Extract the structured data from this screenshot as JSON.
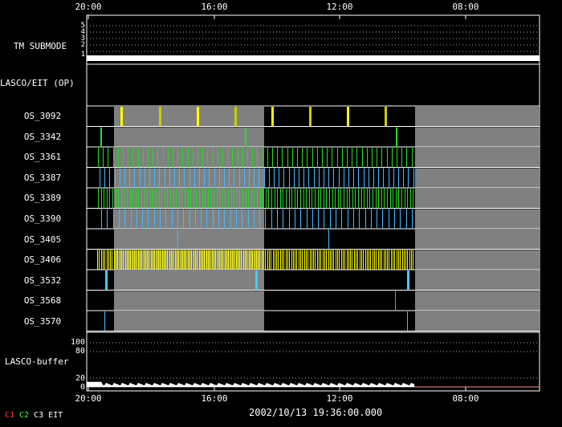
{
  "time_axis": {
    "top_ticks": [
      "20:00",
      "16:00",
      "12:00",
      "08:00"
    ],
    "bottom_ticks": [
      "20:00",
      "16:00",
      "12:00",
      "08:00"
    ]
  },
  "submode_panel": {
    "label": "TM SUBMODE",
    "levels": [
      "5",
      "4",
      "3",
      "2",
      "1"
    ]
  },
  "lasco_eit_label": "LASCO/EIT (OP)",
  "programs": [
    {
      "label": "OS_3092",
      "color": "#ffff00"
    },
    {
      "label": "OS_3342",
      "color": "#22dd22"
    },
    {
      "label": "OS_3361",
      "color": "#22dd22"
    },
    {
      "label": "OS_3387",
      "color": "#44bbff"
    },
    {
      "label": "OS_3389",
      "color": "#22dd22"
    },
    {
      "label": "OS_3390",
      "color": "#44bbff"
    },
    {
      "label": "OS_3405",
      "color": "#44bbff"
    },
    {
      "label": "OS_3406",
      "color": "#ffff00"
    },
    {
      "label": "OS_3532",
      "color": "#44ccff"
    },
    {
      "label": "OS_3568",
      "color": "#22dd22"
    },
    {
      "label": "OS_3570",
      "color": "#44bbff"
    }
  ],
  "buffer_panel": {
    "label": "LASCO-buffer",
    "y_labels": [
      "100",
      "80",
      "20",
      "0"
    ]
  },
  "timestamp": "2002/10/13 19:36:00.000",
  "legend": [
    {
      "text": "C1",
      "color": "#ff3030"
    },
    {
      "text": "C2",
      "color": "#30ff30"
    },
    {
      "text": "C3",
      "color": "#ffffff"
    },
    {
      "text": "EIT",
      "color": "#ffffff"
    }
  ]
}
